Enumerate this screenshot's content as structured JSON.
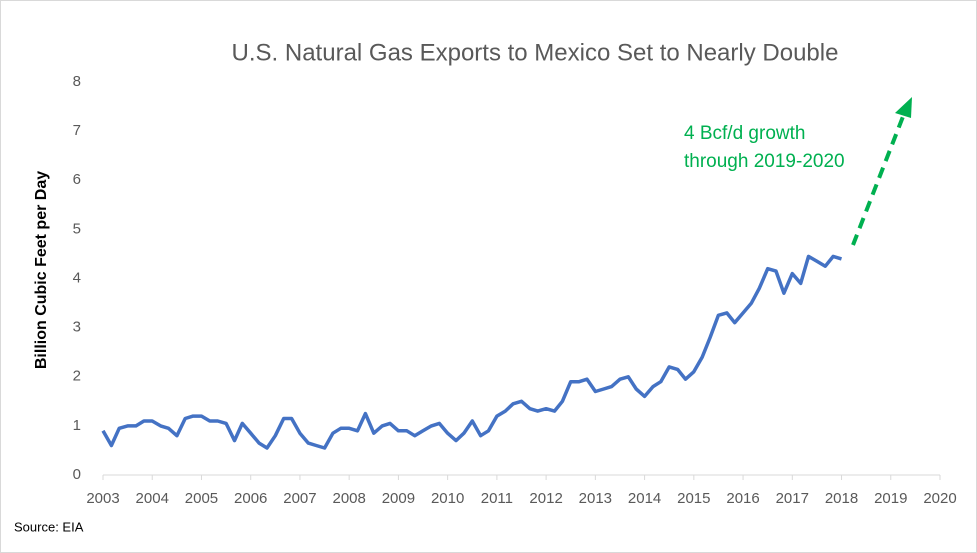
{
  "chart_data": {
    "type": "line",
    "title": "U.S. Natural Gas Exports to Mexico Set to Nearly Double",
    "y_label": "Billion Cubic Feet per Day",
    "source": "Source: EIA",
    "annotation": [
      "4 Bcf/d growth",
      "through 2019-2020"
    ],
    "xlim": [
      2003,
      2020
    ],
    "xticks": [
      2003,
      2004,
      2005,
      2006,
      2007,
      2008,
      2009,
      2010,
      2011,
      2012,
      2013,
      2014,
      2015,
      2016,
      2017,
      2018,
      2019,
      2020
    ],
    "ylim": [
      0,
      8
    ],
    "yticks": [
      0,
      1,
      2,
      3,
      4,
      5,
      6,
      7,
      8
    ],
    "grid": false,
    "x": [
      2003,
      2003.17,
      2003.33,
      2003.5,
      2003.67,
      2003.83,
      2004,
      2004.17,
      2004.33,
      2004.5,
      2004.67,
      2004.83,
      2005,
      2005.17,
      2005.33,
      2005.5,
      2005.67,
      2005.83,
      2006,
      2006.17,
      2006.33,
      2006.5,
      2006.67,
      2006.83,
      2007,
      2007.17,
      2007.33,
      2007.5,
      2007.67,
      2007.83,
      2008,
      2008.17,
      2008.33,
      2008.5,
      2008.67,
      2008.83,
      2009,
      2009.17,
      2009.33,
      2009.5,
      2009.67,
      2009.83,
      2010,
      2010.17,
      2010.33,
      2010.5,
      2010.67,
      2010.83,
      2011,
      2011.17,
      2011.33,
      2011.5,
      2011.67,
      2011.83,
      2012,
      2012.17,
      2012.33,
      2012.5,
      2012.67,
      2012.83,
      2013,
      2013.17,
      2013.33,
      2013.5,
      2013.67,
      2013.83,
      2014,
      2014.17,
      2014.33,
      2014.5,
      2014.67,
      2014.83,
      2015,
      2015.17,
      2015.33,
      2015.5,
      2015.67,
      2015.83,
      2016,
      2016.17,
      2016.33,
      2016.5,
      2016.67,
      2016.83,
      2017,
      2017.17,
      2017.33,
      2017.5,
      2017.67,
      2017.83,
      2018
    ],
    "series": [
      {
        "name": "Exports to Mexico",
        "color": "#4472c4",
        "values": [
          0.9,
          0.6,
          0.95,
          1.0,
          1.0,
          1.1,
          1.1,
          1.0,
          0.95,
          0.8,
          1.15,
          1.2,
          1.2,
          1.1,
          1.1,
          1.05,
          0.7,
          1.05,
          0.85,
          0.65,
          0.55,
          0.8,
          1.15,
          1.15,
          0.85,
          0.65,
          0.6,
          0.55,
          0.85,
          0.95,
          0.95,
          0.9,
          1.25,
          0.85,
          1.0,
          1.05,
          0.9,
          0.9,
          0.8,
          0.9,
          1.0,
          1.05,
          0.85,
          0.7,
          0.85,
          1.1,
          0.8,
          0.9,
          1.2,
          1.3,
          1.45,
          1.5,
          1.35,
          1.3,
          1.35,
          1.3,
          1.5,
          1.9,
          1.9,
          1.95,
          1.7,
          1.75,
          1.8,
          1.95,
          2.0,
          1.75,
          1.6,
          1.8,
          1.9,
          2.2,
          2.15,
          1.95,
          2.1,
          2.4,
          2.8,
          3.25,
          3.3,
          3.1,
          3.3,
          3.5,
          3.8,
          4.2,
          4.15,
          3.7,
          4.1,
          3.9,
          4.45,
          4.35,
          4.25,
          4.45,
          4.4
        ]
      }
    ]
  }
}
